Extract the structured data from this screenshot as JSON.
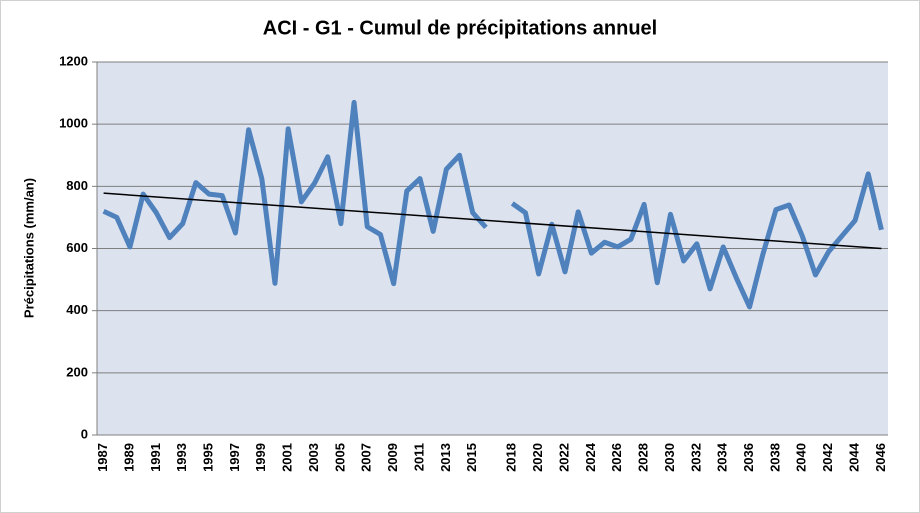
{
  "chart_data": {
    "type": "line",
    "title": "ACI - G1 - Cumul de précipitations annuel",
    "y_label": "Précipitations (mm/an)",
    "categories": [
      "1987",
      null,
      "1989",
      null,
      "1991",
      null,
      "1993",
      null,
      "1995",
      null,
      "1997",
      null,
      "1999",
      null,
      "2001",
      null,
      "2003",
      null,
      "2005",
      null,
      "2007",
      null,
      "2009",
      null,
      "2011",
      null,
      "2013",
      null,
      "2015",
      null,
      null,
      "2018",
      null,
      "2020",
      null,
      "2022",
      null,
      "2024",
      null,
      "2026",
      null,
      "2028",
      null,
      "2030",
      null,
      "2032",
      null,
      "2034",
      null,
      "2036",
      null,
      "2038",
      null,
      "2040",
      null,
      "2042",
      null,
      "2044",
      null,
      "2046"
    ],
    "series": [
      {
        "color": "#4f81bd",
        "values": [
          720,
          700,
          605,
          775,
          715,
          635,
          680,
          812,
          775,
          770,
          650,
          982,
          825,
          488,
          985,
          750,
          810,
          895,
          680,
          1070,
          670,
          645,
          487,
          785,
          825,
          655,
          855,
          900,
          715,
          668,
          null,
          745,
          715,
          518,
          678,
          525,
          718,
          585,
          620,
          605,
          630,
          742,
          490,
          710,
          560,
          615,
          470,
          605,
          505,
          412,
          580,
          725,
          740,
          640,
          515,
          590,
          640,
          690,
          840,
          660
        ]
      }
    ],
    "trendline": {
      "color": "#000000",
      "values": [
        778,
        600
      ]
    },
    "ylim": [
      0,
      1200
    ],
    "yticks": [
      0,
      200,
      400,
      600,
      800,
      1000,
      1200
    ],
    "grid": true
  }
}
